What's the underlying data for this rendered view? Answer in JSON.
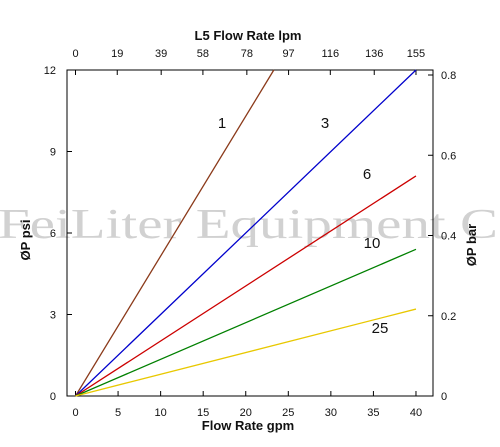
{
  "watermark": "FeiLiter Equipment C",
  "chart_data": {
    "type": "line",
    "title": "",
    "xlabel": "Flow Rate gpm",
    "ylabel": "ØP psi",
    "xlim": [
      -1,
      42
    ],
    "ylim": [
      0,
      12
    ],
    "x_ticks": [
      0,
      5,
      10,
      15,
      20,
      25,
      30,
      35,
      40
    ],
    "y_ticks": [
      0,
      3,
      6,
      9,
      12
    ],
    "top_axis": {
      "label": "L5 Flow Rate lpm",
      "ticks": [
        0,
        19,
        39,
        58,
        78,
        97,
        116,
        136,
        155
      ]
    },
    "right_axis": {
      "label": "ØP bar",
      "ticks": [
        "0",
        "0.2",
        "0.4",
        "0.6",
        "0.8"
      ],
      "values": [
        0,
        0.2,
        0.4,
        0.6,
        0.8
      ]
    },
    "grid": false,
    "series": [
      {
        "label": "1",
        "color": "#8B3A1A",
        "x": [
          0,
          23.3
        ],
        "y": [
          0,
          12
        ]
      },
      {
        "label": "3",
        "color": "#0000CC",
        "x": [
          0,
          40
        ],
        "y": [
          0,
          12
        ]
      },
      {
        "label": "6",
        "color": "#CC0000",
        "x": [
          0,
          40
        ],
        "y": [
          0,
          8.1
        ]
      },
      {
        "label": "10",
        "color": "#008000",
        "x": [
          0,
          40
        ],
        "y": [
          0,
          5.4
        ]
      },
      {
        "label": "25",
        "color": "#E8C800",
        "x": [
          0,
          40
        ],
        "y": [
          0,
          3.2
        ]
      }
    ]
  }
}
